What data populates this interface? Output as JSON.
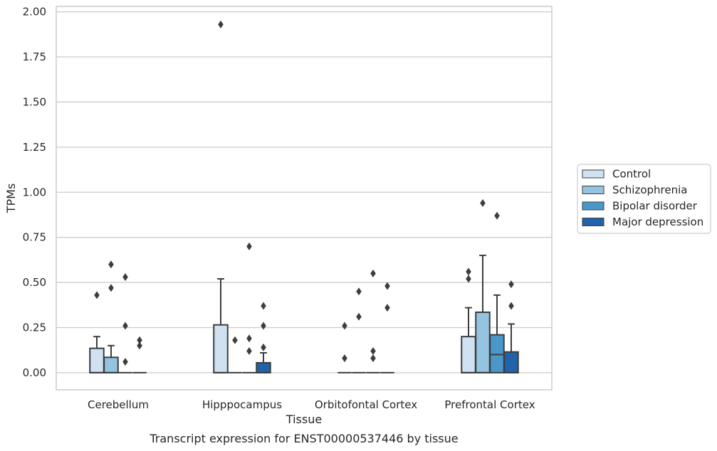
{
  "chart_data": {
    "type": "box",
    "caption": "Transcript expression for ENST00000537446 by tissue",
    "xlabel": "Tissue",
    "ylabel": "TPMs",
    "ylim": [
      -0.095,
      2.03
    ],
    "yticks": [
      "0.00",
      "0.25",
      "0.50",
      "0.75",
      "1.00",
      "1.25",
      "1.50",
      "1.75",
      "2.00"
    ],
    "grid": true,
    "legend_position": "right",
    "categories": [
      "Cerebellum",
      "Hipppocampus",
      "Orbitofontal Cortex",
      "Prefrontal Cortex"
    ],
    "series": [
      {
        "name": "Control",
        "color": "#d0e1f2",
        "boxes": [
          {
            "q1": 0,
            "median": 0,
            "q3": 0.135,
            "whisker_low": 0,
            "whisker_high": 0.2,
            "outliers": [
              0.43
            ]
          },
          {
            "q1": 0,
            "median": 0,
            "q3": 0.265,
            "whisker_low": 0,
            "whisker_high": 0.52,
            "outliers": [
              1.93
            ]
          },
          {
            "q1": 0,
            "median": 0,
            "q3": 0,
            "whisker_low": 0,
            "whisker_high": 0,
            "outliers": [
              0.08,
              0.26
            ]
          },
          {
            "q1": 0,
            "median": 0,
            "q3": 0.2,
            "whisker_low": 0,
            "whisker_high": 0.36,
            "outliers": [
              0.52,
              0.56
            ]
          }
        ]
      },
      {
        "name": "Schizophrenia",
        "color": "#94c4df",
        "boxes": [
          {
            "q1": 0,
            "median": 0,
            "q3": 0.085,
            "whisker_low": 0,
            "whisker_high": 0.15,
            "outliers": [
              0.47,
              0.6
            ]
          },
          {
            "q1": 0,
            "median": 0,
            "q3": 0,
            "whisker_low": 0,
            "whisker_high": 0,
            "outliers": [
              0.18
            ]
          },
          {
            "q1": 0,
            "median": 0,
            "q3": 0,
            "whisker_low": 0,
            "whisker_high": 0,
            "outliers": [
              0.31,
              0.45
            ]
          },
          {
            "q1": 0,
            "median": 0,
            "q3": 0.335,
            "whisker_low": 0,
            "whisker_high": 0.65,
            "outliers": [
              0.94
            ]
          }
        ]
      },
      {
        "name": "Bipolar disorder",
        "color": "#4a98c9",
        "boxes": [
          {
            "q1": 0,
            "median": 0,
            "q3": 0,
            "whisker_low": 0,
            "whisker_high": 0,
            "outliers": [
              0.06,
              0.26,
              0.53
            ]
          },
          {
            "q1": 0,
            "median": 0,
            "q3": 0,
            "whisker_low": 0,
            "whisker_high": 0,
            "outliers": [
              0.12,
              0.19,
              0.7
            ]
          },
          {
            "q1": 0,
            "median": 0,
            "q3": 0,
            "whisker_low": 0,
            "whisker_high": 0,
            "outliers": [
              0.08,
              0.12,
              0.55
            ]
          },
          {
            "q1": 0,
            "median": 0.1,
            "q3": 0.21,
            "whisker_low": 0,
            "whisker_high": 0.43,
            "outliers": [
              0.87
            ]
          }
        ]
      },
      {
        "name": "Major depression",
        "color": "#2163aa",
        "boxes": [
          {
            "q1": 0,
            "median": 0,
            "q3": 0,
            "whisker_low": 0,
            "whisker_high": 0,
            "outliers": [
              0.15,
              0.18
            ]
          },
          {
            "q1": 0,
            "median": 0,
            "q3": 0.055,
            "whisker_low": 0,
            "whisker_high": 0.11,
            "outliers": [
              0.14,
              0.26,
              0.37
            ]
          },
          {
            "q1": 0,
            "median": 0,
            "q3": 0,
            "whisker_low": 0,
            "whisker_high": 0,
            "outliers": [
              0.36,
              0.48
            ]
          },
          {
            "q1": 0,
            "median": 0,
            "q3": 0.115,
            "whisker_low": 0,
            "whisker_high": 0.27,
            "outliers": [
              0.37,
              0.49
            ]
          }
        ]
      }
    ]
  }
}
